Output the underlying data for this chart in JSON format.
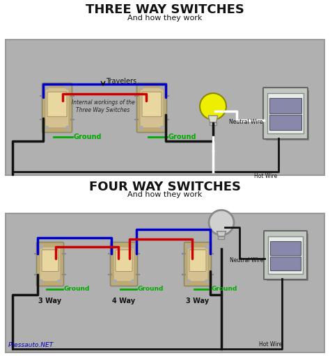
{
  "title1": "THREE WAY SWITCHES",
  "subtitle1": "And how they work",
  "title2": "FOUR WAY SWITCHES",
  "subtitle2": "And how they work",
  "bg_outer": "#c8c8c8",
  "bg_panel": "#b0b0b0",
  "bg_white": "#ffffff",
  "blue": "#0000cc",
  "red": "#cc0000",
  "black": "#111111",
  "white_wire": "#ffffff",
  "green": "#00aa00",
  "yellow_bulb": "#eeee00",
  "switch_fill": "#d4c090",
  "switch_outer": "#c0aa70",
  "panel_fill": "#c0c8c0",
  "panel_dark": "#888888",
  "label_travelers": "Travelers",
  "label_internal": "Internal workings of the\nThree Way Switches",
  "label_ground1": "Ground",
  "label_ground2": "Ground",
  "label_neutral": "Neutral Wire",
  "label_hot": "Hot Wire",
  "label_3way_l": "3 Way",
  "label_4way": "4 Way",
  "label_3way_r": "3 Way",
  "label_ground_l": "Ground",
  "label_ground_m": "Ground",
  "label_ground_r": "Ground",
  "watermark": "Pressauto.NET"
}
